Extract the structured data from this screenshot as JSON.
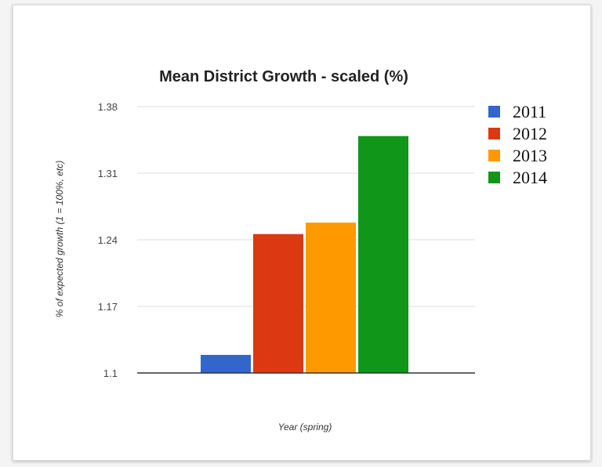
{
  "chart_data": {
    "type": "bar",
    "title": "Mean District Growth - scaled (%)",
    "xlabel": "Year (spring)",
    "ylabel": "% of expected growth (1 = 100%, etc)",
    "ylim": [
      1.1,
      1.38
    ],
    "yticks": [
      "1.38",
      "1.31",
      "1.24",
      "1.17",
      "1.1"
    ],
    "grid": true,
    "legend_position": "right",
    "series": [
      {
        "name": "2011",
        "value": 1.119,
        "color": "#3366cc"
      },
      {
        "name": "2012",
        "value": 1.246,
        "color": "#dc3912"
      },
      {
        "name": "2013",
        "value": 1.258,
        "color": "#ff9900"
      },
      {
        "name": "2014",
        "value": 1.349,
        "color": "#109618"
      }
    ]
  }
}
